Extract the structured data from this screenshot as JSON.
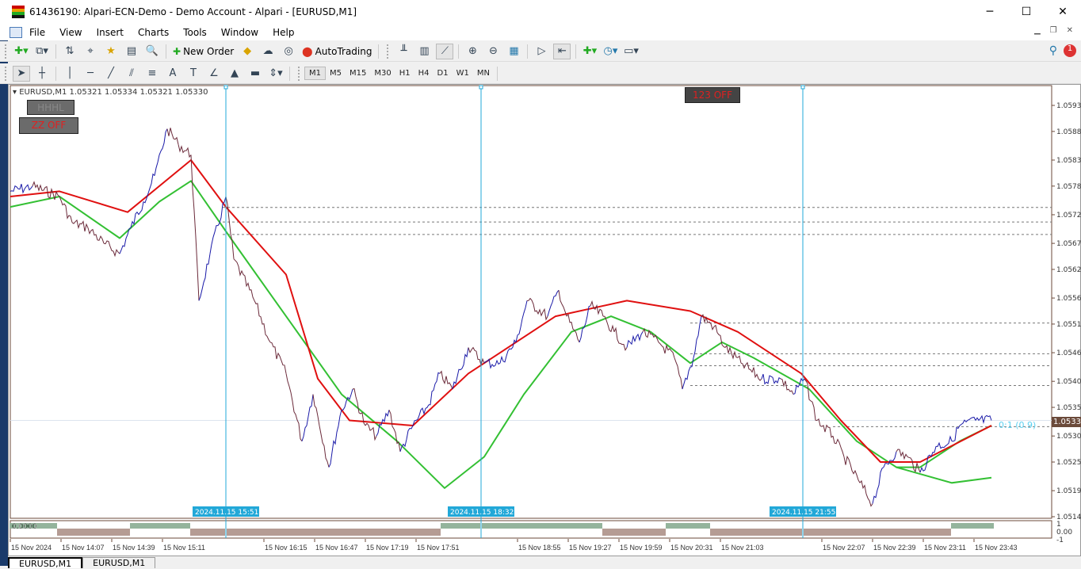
{
  "window": {
    "title": "61436190: Alpari-ECN-Demo - Demo Account - Alpari - [EURUSD,M1]",
    "minimize": "─",
    "maximize": "☐",
    "close": "✕"
  },
  "menu": [
    "File",
    "View",
    "Insert",
    "Charts",
    "Tools",
    "Window",
    "Help"
  ],
  "toolbar": {
    "new_order": "New Order",
    "autotrading": "AutoTrading"
  },
  "timeframes": [
    "M1",
    "M5",
    "M15",
    "M30",
    "H1",
    "H4",
    "D1",
    "W1",
    "MN"
  ],
  "active_timeframe": "M1",
  "chart": {
    "header": "EURUSD,M1  1.05321 1.05334 1.05321 1.05330",
    "buttons": {
      "hhhl": "HHHL",
      "zz": "ZZ OFF",
      "b123": "123 OFF"
    },
    "fib_label": "0:1 (0.9)",
    "current_price": "1.05330",
    "subwindow_value": "0.0000",
    "subwindow_axis": [
      "1",
      "0.00",
      "-1"
    ]
  },
  "chart_data": {
    "type": "line",
    "symbol": "EURUSD",
    "timeframe": "M1",
    "ylim": [
      1.05125,
      1.0596
    ],
    "xlim": [
      "13:35",
      "00:14"
    ],
    "price_ticks": [
      "1.05935",
      "1.05885",
      "1.05830",
      "1.05780",
      "1.05725",
      "1.05670",
      "1.05620",
      "1.05565",
      "1.05515",
      "1.05460",
      "1.05405",
      "1.05355",
      "1.05300",
      "1.05250",
      "1.05195",
      "1.05145"
    ],
    "time_ticks": [
      {
        "t": "13:35",
        "label": "15 Nov 2024"
      },
      {
        "t": "14:07",
        "label": "15 Nov 14:07"
      },
      {
        "t": "14:39",
        "label": "15 Nov 14:39"
      },
      {
        "t": "15:11",
        "label": "15 Nov 15:11"
      },
      {
        "t": "16:15",
        "label": "15 Nov 16:15"
      },
      {
        "t": "16:47",
        "label": "15 Nov 16:47"
      },
      {
        "t": "17:19",
        "label": "15 Nov 17:19"
      },
      {
        "t": "17:51",
        "label": "15 Nov 17:51"
      },
      {
        "t": "18:55",
        "label": "15 Nov 18:55"
      },
      {
        "t": "19:27",
        "label": "15 Nov 19:27"
      },
      {
        "t": "19:59",
        "label": "15 Nov 19:59"
      },
      {
        "t": "20:31",
        "label": "15 Nov 20:31"
      },
      {
        "t": "21:03",
        "label": "15 Nov 21:03"
      },
      {
        "t": "22:07",
        "label": "15 Nov 22:07"
      },
      {
        "t": "22:39",
        "label": "15 Nov 22:39"
      },
      {
        "t": "23:11",
        "label": "15 Nov 23:11"
      },
      {
        "t": "23:43",
        "label": "15 Nov 23:43"
      }
    ],
    "vertical_lines": [
      {
        "t": "15:51",
        "label": "2024.11.15 15:51"
      },
      {
        "t": "18:32",
        "label": "2024.11.15 18:32"
      },
      {
        "t": "21:55",
        "label": "2024.11.15 21:55"
      }
    ],
    "horizontal_levels": [
      1.05739,
      1.05711,
      1.05687,
      1.05517,
      1.05458,
      1.05435,
      1.05397,
      1.05318
    ],
    "price": [
      [
        "13:35",
        1.0577
      ],
      [
        "13:49",
        1.0578
      ],
      [
        "14:06",
        1.0576
      ],
      [
        "14:14",
        1.0571
      ],
      [
        "14:24",
        1.057
      ],
      [
        "14:34",
        1.0567
      ],
      [
        "14:44",
        1.0565
      ],
      [
        "14:51",
        1.057
      ],
      [
        "14:59",
        1.0575
      ],
      [
        "15:06",
        1.058
      ],
      [
        "15:14",
        1.0589
      ],
      [
        "15:21",
        1.0586
      ],
      [
        "15:29",
        1.0584
      ],
      [
        "15:34",
        1.0556
      ],
      [
        "15:41",
        1.0565
      ],
      [
        "15:51",
        1.0576
      ],
      [
        "15:56",
        1.0564
      ],
      [
        "16:09",
        1.0556
      ],
      [
        "16:19",
        1.0548
      ],
      [
        "16:29",
        1.0542
      ],
      [
        "16:39",
        1.0529
      ],
      [
        "16:46",
        1.0538
      ],
      [
        "16:56",
        1.0524
      ],
      [
        "17:04",
        1.0535
      ],
      [
        "17:11",
        1.0539
      ],
      [
        "17:19",
        1.0532
      ],
      [
        "17:26",
        1.053
      ],
      [
        "17:34",
        1.0535
      ],
      [
        "17:41",
        1.0527
      ],
      [
        "17:49",
        1.0532
      ],
      [
        "17:59",
        1.0536
      ],
      [
        "18:06",
        1.0542
      ],
      [
        "18:14",
        1.0539
      ],
      [
        "18:24",
        1.0547
      ],
      [
        "18:34",
        1.0544
      ],
      [
        "18:44",
        1.0544
      ],
      [
        "18:54",
        1.0548
      ],
      [
        "19:01",
        1.0556
      ],
      [
        "19:14",
        1.0553
      ],
      [
        "19:21",
        1.0558
      ],
      [
        "19:26",
        1.0553
      ],
      [
        "19:34",
        1.0548
      ],
      [
        "19:41",
        1.0555
      ],
      [
        "19:49",
        1.0553
      ],
      [
        "19:56",
        1.055
      ],
      [
        "20:04",
        1.0547
      ],
      [
        "20:14",
        1.055
      ],
      [
        "20:24",
        1.0548
      ],
      [
        "20:34",
        1.0545
      ],
      [
        "20:39",
        1.0539
      ],
      [
        "20:46",
        1.0545
      ],
      [
        "20:51",
        1.0553
      ],
      [
        "20:59",
        1.0551
      ],
      [
        "21:06",
        1.0547
      ],
      [
        "21:16",
        1.0544
      ],
      [
        "21:29",
        1.0541
      ],
      [
        "21:41",
        1.0541
      ],
      [
        "21:49",
        1.0538
      ],
      [
        "21:56",
        1.0541
      ],
      [
        "22:04",
        1.0533
      ],
      [
        "22:14",
        1.053
      ],
      [
        "22:21",
        1.0526
      ],
      [
        "22:31",
        1.0521
      ],
      [
        "22:39",
        1.0517
      ],
      [
        "22:46",
        1.0524
      ],
      [
        "22:54",
        1.0527
      ],
      [
        "23:01",
        1.0526
      ],
      [
        "23:09",
        1.0523
      ],
      [
        "23:19",
        1.0528
      ],
      [
        "23:29",
        1.0529
      ],
      [
        "23:34",
        1.0532
      ],
      [
        "23:44",
        1.0533
      ],
      [
        "23:54",
        1.0533
      ]
    ],
    "ma_red": [
      [
        "13:35",
        1.0576
      ],
      [
        "14:06",
        1.0577
      ],
      [
        "14:49",
        1.0573
      ],
      [
        "15:29",
        1.0583
      ],
      [
        "15:51",
        1.0574
      ],
      [
        "16:29",
        1.0561
      ],
      [
        "16:49",
        1.0541
      ],
      [
        "17:09",
        1.0533
      ],
      [
        "17:49",
        1.0532
      ],
      [
        "18:24",
        1.0542
      ],
      [
        "19:19",
        1.0553
      ],
      [
        "20:04",
        1.0556
      ],
      [
        "20:44",
        1.0554
      ],
      [
        "21:14",
        1.055
      ],
      [
        "21:54",
        1.0542
      ],
      [
        "22:19",
        1.0533
      ],
      [
        "22:44",
        1.0525
      ],
      [
        "23:09",
        1.0525
      ],
      [
        "23:54",
        1.0532
      ]
    ],
    "ma_green": [
      [
        "13:35",
        1.0574
      ],
      [
        "14:06",
        1.0576
      ],
      [
        "14:44",
        1.0568
      ],
      [
        "15:09",
        1.0575
      ],
      [
        "15:29",
        1.0579
      ],
      [
        "15:54",
        1.0568
      ],
      [
        "16:29",
        1.0553
      ],
      [
        "17:04",
        1.0538
      ],
      [
        "17:39",
        1.0529
      ],
      [
        "18:09",
        1.052
      ],
      [
        "18:34",
        1.0526
      ],
      [
        "18:59",
        1.0538
      ],
      [
        "19:29",
        1.055
      ],
      [
        "19:54",
        1.0553
      ],
      [
        "20:19",
        1.055
      ],
      [
        "20:44",
        1.0544
      ],
      [
        "21:04",
        1.0548
      ],
      [
        "21:24",
        1.0545
      ],
      [
        "21:59",
        1.0539
      ],
      [
        "22:29",
        1.0529
      ],
      [
        "22:54",
        1.0524
      ],
      [
        "23:09",
        1.0524
      ],
      [
        "23:34",
        1.0529
      ],
      [
        "23:54",
        1.0532
      ]
    ],
    "ma_green_2": [
      [
        "22:54",
        1.0524
      ],
      [
        "23:29",
        1.0521
      ],
      [
        "23:54",
        1.0522
      ]
    ],
    "histogram": [
      [
        "13:35",
        "14:05",
        1
      ],
      [
        "14:05",
        "14:51",
        -1
      ],
      [
        "14:51",
        "15:29",
        1
      ],
      [
        "15:29",
        "18:07",
        -1
      ],
      [
        "18:07",
        "19:49",
        1
      ],
      [
        "19:49",
        "20:29",
        -1
      ],
      [
        "20:29",
        "20:57",
        1
      ],
      [
        "20:57",
        "23:29",
        -1
      ],
      [
        "23:29",
        "23:56",
        1
      ]
    ],
    "colors": {
      "up": "#1a1aa8",
      "down": "#6b2a3a",
      "ma_red": "#e01010",
      "ma_green": "#33c033",
      "vline": "#22a8d8",
      "price_tag": "#6b4a3a"
    }
  },
  "tabs": [
    "EURUSD,M1",
    "EURUSD,M1"
  ]
}
